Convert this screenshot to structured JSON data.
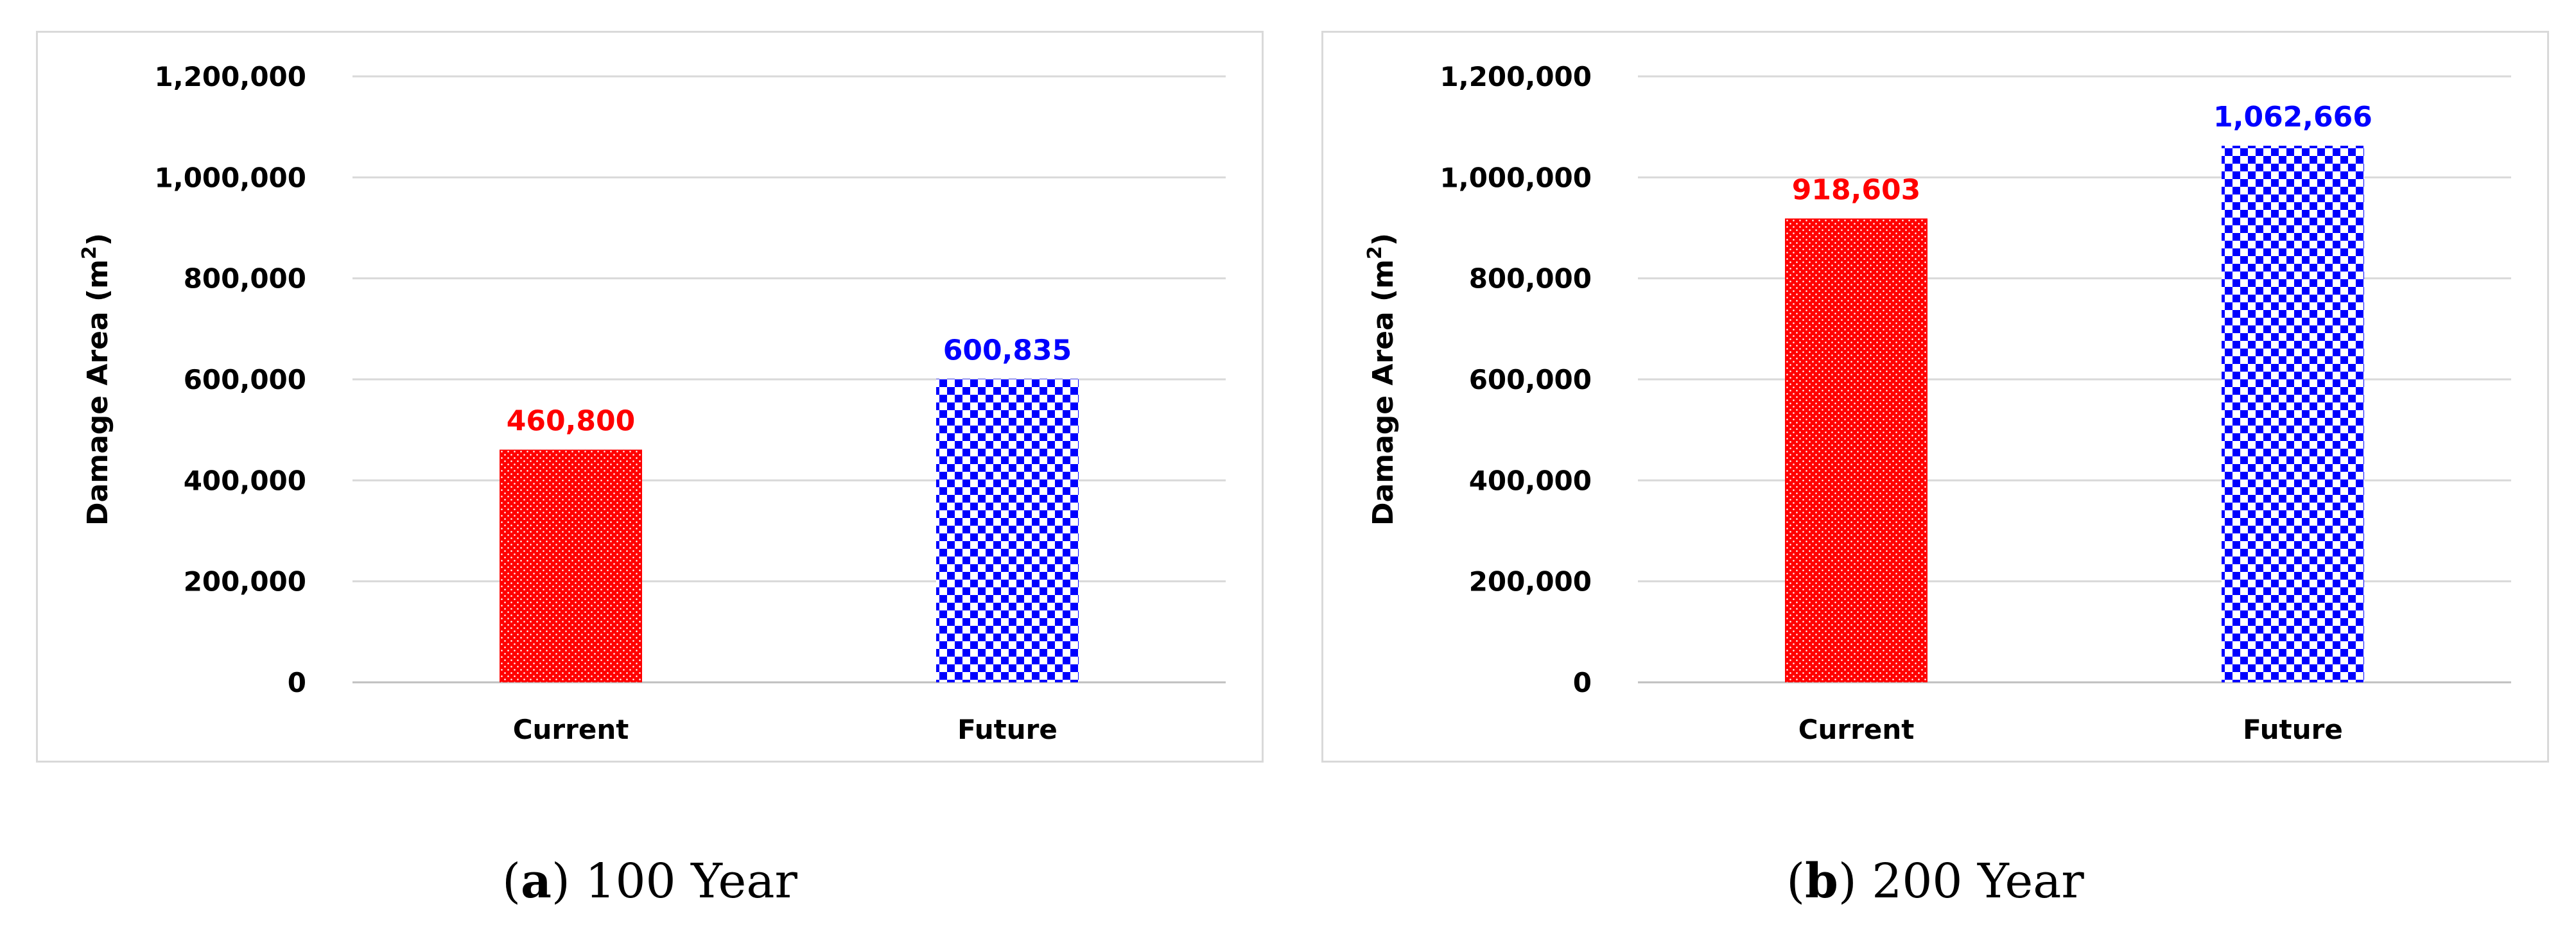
{
  "chart_data": [
    {
      "type": "bar",
      "panel": "a",
      "caption_letter": "a",
      "caption_text": "100 Year",
      "ylabel": "Damage Area (m",
      "ylabel_sup": "2",
      "ylabel_close": ")",
      "categories": [
        "Current",
        "Future"
      ],
      "values": [
        460800,
        600835
      ],
      "value_labels": [
        "460,800",
        "600,835"
      ],
      "colors": [
        "#ff0000",
        "#0000ff"
      ],
      "patterns": [
        "dots",
        "checker"
      ],
      "ylim": [
        0,
        1200000
      ],
      "yticks": [
        0,
        200000,
        400000,
        600000,
        800000,
        1000000,
        1200000
      ],
      "ytick_labels": [
        "0",
        "200,000",
        "400,000",
        "600,000",
        "800,000",
        "1,000,000",
        "1,200,000"
      ],
      "grid": true
    },
    {
      "type": "bar",
      "panel": "b",
      "caption_letter": "b",
      "caption_text": "200 Year",
      "ylabel": "Damage Area (m",
      "ylabel_sup": "2",
      "ylabel_close": ")",
      "categories": [
        "Current",
        "Future"
      ],
      "values": [
        918603,
        1062666
      ],
      "value_labels": [
        "918,603",
        "1,062,666"
      ],
      "colors": [
        "#ff0000",
        "#0000ff"
      ],
      "patterns": [
        "dots",
        "checker"
      ],
      "ylim": [
        0,
        1200000
      ],
      "yticks": [
        0,
        200000,
        400000,
        600000,
        800000,
        1000000,
        1200000
      ],
      "ytick_labels": [
        "0",
        "200,000",
        "400,000",
        "600,000",
        "800,000",
        "1,000,000",
        "1,200,000"
      ],
      "grid": true
    }
  ]
}
